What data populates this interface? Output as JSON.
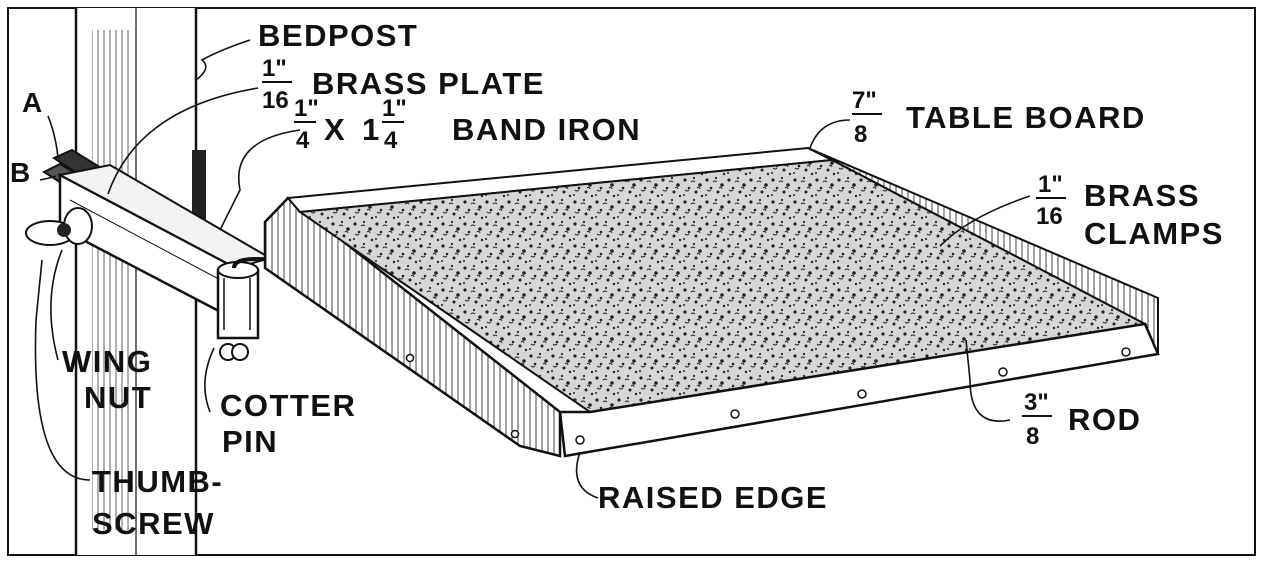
{
  "labels": {
    "a": "A",
    "b": "B",
    "bedpost": "BEDPOST",
    "brass_plate": {
      "num": "1\"",
      "den": "16",
      "text": "BRASS PLATE"
    },
    "band_iron": {
      "n1": "1\"",
      "d1": "4",
      "x": "X",
      "whole": "1",
      "n2": "1\"",
      "d2": "4",
      "text": "BAND IRON"
    },
    "table_board": {
      "num": "7\"",
      "den": "8",
      "text": "TABLE BOARD"
    },
    "brass_clamps": {
      "num": "1\"",
      "den": "16",
      "text1": "BRASS",
      "text2": "CLAMPS"
    },
    "wing_nut": {
      "line1": "WING",
      "line2": "NUT"
    },
    "cotter_pin": {
      "line1": "COTTER",
      "line2": "PIN"
    },
    "rod": {
      "num": "3\"",
      "den": "8",
      "text": "ROD"
    },
    "thumbscrew": {
      "line1": "THUMB-",
      "line2": "SCREW"
    },
    "raised_edge": "RAISED EDGE"
  },
  "colors": {
    "ink": "#111111",
    "paper": "#ffffff",
    "surface": "#b8b8b8"
  }
}
